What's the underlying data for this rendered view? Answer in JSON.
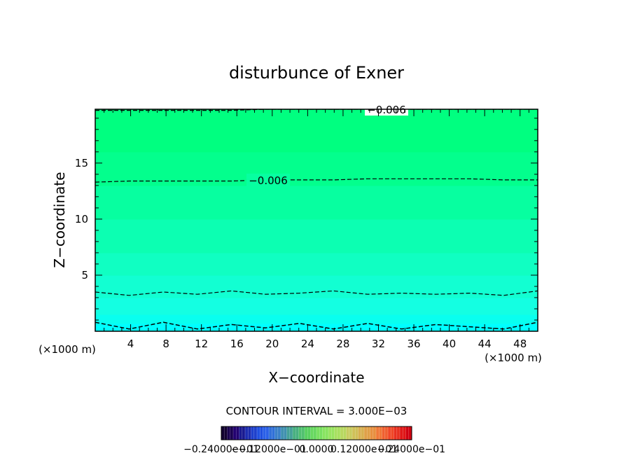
{
  "chart_data": {
    "type": "heatmap",
    "title": "disturbunce of Exner",
    "xlabel": "X−coordinate",
    "ylabel": "Z−coordinate",
    "x_unit_left": "(×1000 m)",
    "x_unit_right": "(×1000 m)",
    "xlim": [
      0,
      50
    ],
    "ylim": [
      0,
      19.8
    ],
    "x_ticks": [
      4,
      8,
      12,
      16,
      20,
      24,
      28,
      32,
      36,
      40,
      44,
      48
    ],
    "x_tick_labels": [
      "4",
      "8",
      "12",
      "16",
      "20",
      "24",
      "28",
      "32",
      "36",
      "40",
      "44",
      "48"
    ],
    "y_ticks": [
      5,
      10,
      15
    ],
    "y_tick_labels": [
      "5",
      "10",
      "15"
    ],
    "contour_interval_text": "CONTOUR INTERVAL = 3.000E−03",
    "contour_interval": 0.003,
    "color_bands": [
      {
        "z_from": 0,
        "z_to": 0.7,
        "color": "#00ffff"
      },
      {
        "z_from": 0.7,
        "z_to": 1.5,
        "color": "#09ffef"
      },
      {
        "z_from": 1.5,
        "z_to": 3.0,
        "color": "#14ffe2"
      },
      {
        "z_from": 3.0,
        "z_to": 5.0,
        "color": "#12ffd2"
      },
      {
        "z_from": 5.0,
        "z_to": 7.0,
        "color": "#10ffc2"
      },
      {
        "z_from": 7.0,
        "z_to": 10.0,
        "color": "#0cffb2"
      },
      {
        "z_from": 10.0,
        "z_to": 13.0,
        "color": "#07ffa0"
      },
      {
        "z_from": 13.0,
        "z_to": 16.0,
        "color": "#03ff8d"
      },
      {
        "z_from": 16.0,
        "z_to": 19.8,
        "color": "#00ff80"
      }
    ],
    "contours": [
      {
        "label": "−0.006",
        "z": [
          13.3,
          13.4,
          13.4,
          13.4,
          13.4,
          13.5,
          13.5,
          13.5,
          13.6,
          13.6,
          13.6,
          13.6,
          13.5,
          13.5
        ]
      },
      {
        "label": "−0.006",
        "z": [
          19.7,
          19.7,
          19.7,
          19.7,
          19.7,
          19.8,
          19.8,
          19.8,
          19.8,
          19.8,
          19.8,
          19.8,
          19.8,
          19.8
        ]
      },
      {
        "label": "",
        "z": [
          3.5,
          3.2,
          3.5,
          3.3,
          3.6,
          3.3,
          3.4,
          3.6,
          3.3,
          3.4,
          3.3,
          3.4,
          3.2,
          3.6
        ]
      },
      {
        "label": "",
        "z": [
          0.8,
          0.2,
          0.8,
          0.2,
          0.6,
          0.3,
          0.7,
          0.2,
          0.7,
          0.2,
          0.6,
          0.4,
          0.2,
          0.8
        ]
      }
    ],
    "colorbar": {
      "labels": [
        "−0.24000e−01",
        "−0.12000e−01",
        "0.0000",
        "0.12000e−01",
        "0.24000e−01"
      ],
      "colors": [
        "#120030",
        "#1a0050",
        "#220070",
        "#1a1a90",
        "#1c2cb0",
        "#1e40cc",
        "#2050e0",
        "#2a60e8",
        "#3070d8",
        "#3a80c8",
        "#4090b0",
        "#44a098",
        "#48b080",
        "#50c070",
        "#58d060",
        "#68d860",
        "#78e060",
        "#88e460",
        "#98e460",
        "#a8e060",
        "#b8d860",
        "#c8cc60",
        "#d0c058",
        "#d8b050",
        "#e0a048",
        "#e89040",
        "#f07838",
        "#f06030",
        "#f04828",
        "#e83020",
        "#e01818",
        "#d00010"
      ]
    }
  }
}
